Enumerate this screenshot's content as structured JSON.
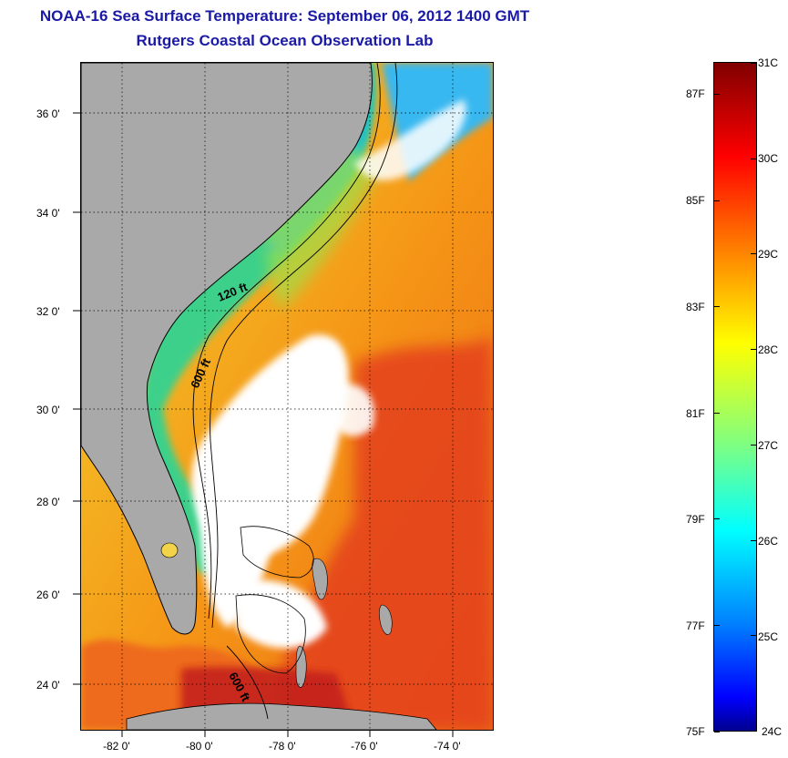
{
  "header": {
    "title": "NOAA-16 Sea Surface Temperature:  September 06, 2012 1400 GMT",
    "subtitle": "Rutgers Coastal Ocean Observation Lab"
  },
  "map": {
    "lat_labels": [
      "36 0'",
      "34 0'",
      "32 0'",
      "30 0'",
      "28 0'",
      "26 0'",
      "24 0'"
    ],
    "lon_labels": [
      "-82 0'",
      "-80 0'",
      "-78 0'",
      "-76 0'",
      "-74 0'"
    ],
    "contour_labels": [
      "120 ft",
      "600 ft",
      "600 ft"
    ],
    "colors": {
      "land": "#a9a9a9",
      "cloud": "#ffffff"
    }
  },
  "colorbar": {
    "celsius_labels": [
      "31C",
      "30C",
      "29C",
      "28C",
      "27C",
      "26C",
      "25C",
      "24C"
    ],
    "fahrenheit_labels": [
      "87F",
      "85F",
      "83F",
      "81F",
      "79F",
      "77F",
      "75F"
    ],
    "range_c": [
      24,
      31
    ]
  }
}
